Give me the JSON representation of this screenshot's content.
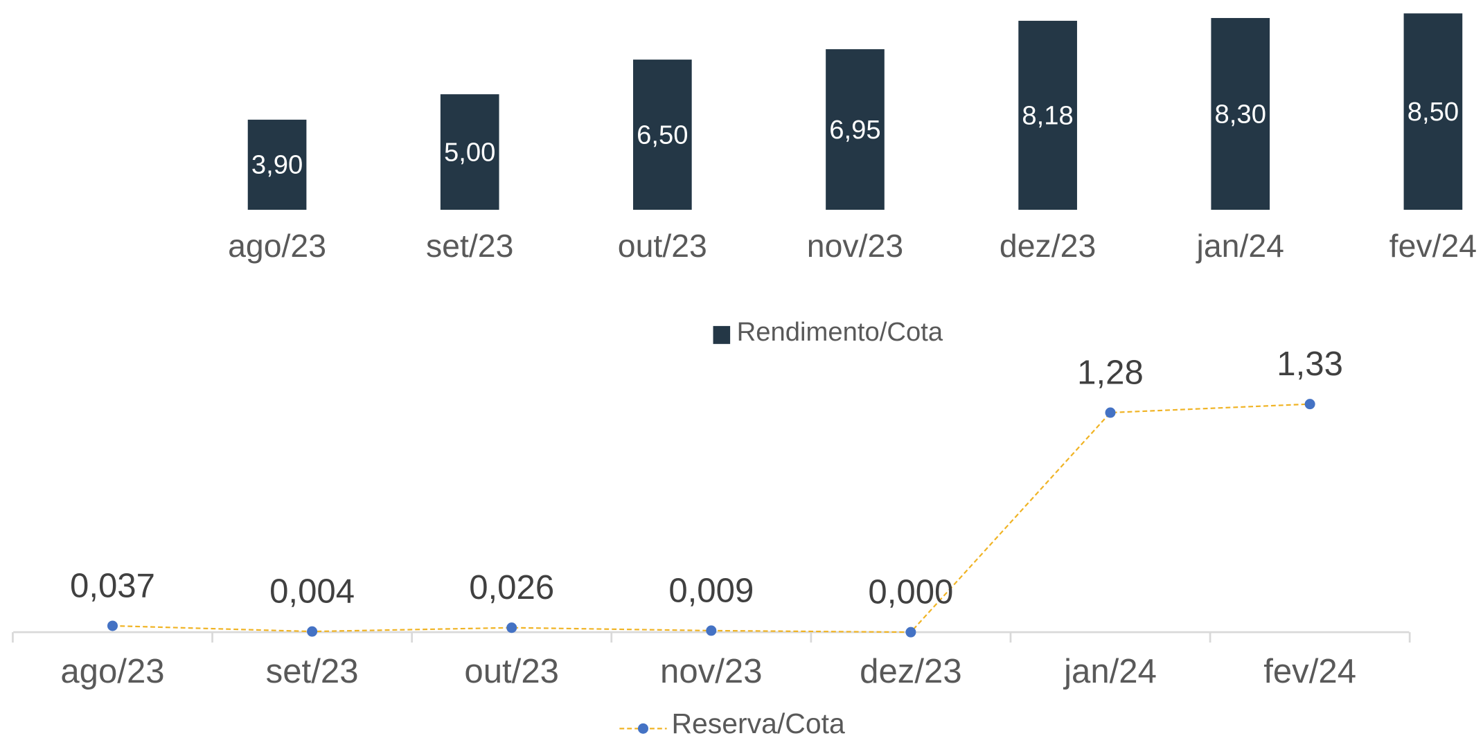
{
  "chart_data": [
    {
      "type": "bar",
      "categories": [
        "ago/23",
        "set/23",
        "out/23",
        "nov/23",
        "dez/23",
        "jan/24",
        "fev/24"
      ],
      "series": [
        {
          "name": "Rendimento/Cota",
          "color": "#243746",
          "values": [
            3.9,
            5.0,
            6.5,
            6.95,
            8.18,
            8.3,
            8.5
          ],
          "value_labels": [
            "3,90",
            "5,00",
            "6,50",
            "6,95",
            "8,18",
            "8,30",
            "8,50"
          ]
        }
      ]
    },
    {
      "type": "line",
      "categories": [
        "ago/23",
        "set/23",
        "out/23",
        "nov/23",
        "dez/23",
        "jan/24",
        "fev/24"
      ],
      "series": [
        {
          "name": "Reserva/Cota",
          "color": "#f0b323",
          "marker_color": "#4472c4",
          "values": [
            0.037,
            0.004,
            0.026,
            0.009,
            0.0,
            1.28,
            1.33
          ],
          "value_labels": [
            "0,037",
            "0,004",
            "0,026",
            "0,009",
            "0,000",
            "1,28",
            "1,33"
          ]
        }
      ]
    }
  ]
}
